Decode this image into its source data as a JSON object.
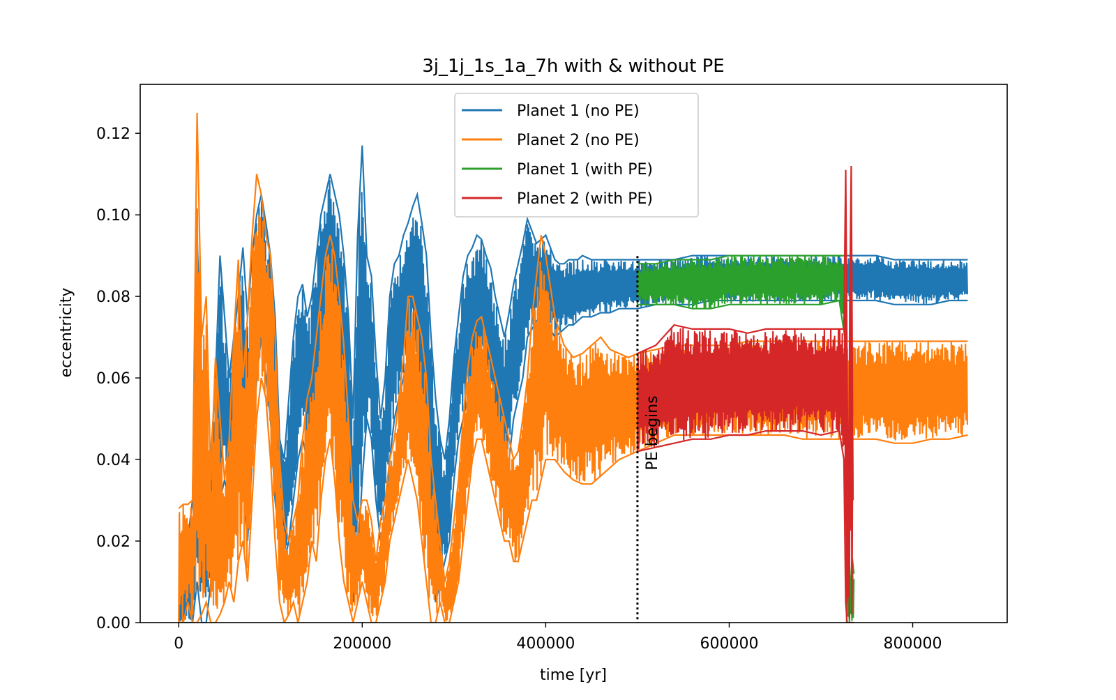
{
  "chart_data": {
    "type": "line",
    "title": "3j_1j_1s_1a_7h with & without PE",
    "xlabel": "time [yr]",
    "ylabel": "eccentricity",
    "xlim": [
      -42000,
      903000
    ],
    "ylim": [
      0.0,
      0.132
    ],
    "xticks": [
      0,
      200000,
      400000,
      600000,
      800000
    ],
    "xtick_labels": [
      "0",
      "200000",
      "400000",
      "600000",
      "800000"
    ],
    "yticks": [
      0.0,
      0.02,
      0.04,
      0.06,
      0.08,
      0.1,
      0.12
    ],
    "ytick_labels": [
      "0.00",
      "0.02",
      "0.04",
      "0.06",
      "0.08",
      "0.10",
      "0.12"
    ],
    "grid": false,
    "legend_position": "upper-center",
    "annotation": {
      "text": "PE begins",
      "x": 500000
    },
    "series": [
      {
        "name": "Planet 1 (no PE)",
        "color": "#1f77b4",
        "x": [
          0,
          15000,
          20000,
          25000,
          30000,
          35000,
          40000,
          45000,
          50000,
          55000,
          60000,
          65000,
          70000,
          75000,
          80000,
          85000,
          90000,
          95000,
          100000,
          105000,
          110000,
          115000,
          120000,
          125000,
          130000,
          135000,
          140000,
          145000,
          150000,
          155000,
          160000,
          165000,
          170000,
          175000,
          180000,
          185000,
          190000,
          195000,
          200000,
          205000,
          210000,
          215000,
          220000,
          225000,
          230000,
          235000,
          240000,
          245000,
          250000,
          255000,
          260000,
          265000,
          270000,
          275000,
          280000,
          285000,
          290000,
          295000,
          300000,
          305000,
          310000,
          315000,
          320000,
          325000,
          330000,
          335000,
          340000,
          345000,
          350000,
          355000,
          360000,
          365000,
          370000,
          375000,
          380000,
          385000,
          390000,
          395000,
          400000,
          405000,
          410000,
          415000,
          420000,
          425000,
          430000,
          435000,
          440000,
          450000,
          460000,
          470000,
          480000,
          490000,
          500000,
          520000,
          540000,
          560000,
          580000,
          600000,
          620000,
          640000,
          660000,
          680000,
          700000,
          720000,
          740000,
          760000,
          780000,
          800000,
          820000,
          840000,
          860000
        ],
        "lower": [
          0.0,
          0.0,
          0.01,
          0.0,
          0.0,
          0.01,
          0.02,
          0.03,
          0.035,
          0.03,
          0.04,
          0.045,
          0.035,
          0.02,
          0.04,
          0.06,
          0.07,
          0.06,
          0.05,
          0.03,
          0.02,
          0.015,
          0.02,
          0.03,
          0.04,
          0.045,
          0.04,
          0.035,
          0.05,
          0.06,
          0.07,
          0.075,
          0.07,
          0.06,
          0.045,
          0.02,
          0.005,
          0.015,
          0.035,
          0.05,
          0.045,
          0.03,
          0.02,
          0.025,
          0.04,
          0.05,
          0.055,
          0.06,
          0.065,
          0.07,
          0.06,
          0.045,
          0.03,
          0.015,
          0.005,
          0.01,
          0.015,
          0.02,
          0.035,
          0.045,
          0.05,
          0.055,
          0.055,
          0.06,
          0.065,
          0.06,
          0.055,
          0.045,
          0.04,
          0.035,
          0.04,
          0.05,
          0.055,
          0.06,
          0.07,
          0.072,
          0.074,
          0.075,
          0.074,
          0.072,
          0.07,
          0.071,
          0.072,
          0.073,
          0.073,
          0.074,
          0.075,
          0.075,
          0.076,
          0.076,
          0.077,
          0.077,
          0.077,
          0.078,
          0.078,
          0.078,
          0.079,
          0.079,
          0.079,
          0.079,
          0.079,
          0.079,
          0.079,
          0.079,
          0.079,
          0.079,
          0.078,
          0.078,
          0.078,
          0.079,
          0.079
        ],
        "upper": [
          0.002,
          0.03,
          0.095,
          0.06,
          0.03,
          0.04,
          0.06,
          0.09,
          0.075,
          0.06,
          0.07,
          0.08,
          0.092,
          0.075,
          0.09,
          0.1,
          0.105,
          0.098,
          0.09,
          0.075,
          0.045,
          0.04,
          0.055,
          0.07,
          0.08,
          0.083,
          0.075,
          0.08,
          0.09,
          0.1,
          0.105,
          0.11,
          0.105,
          0.1,
          0.09,
          0.075,
          0.05,
          0.095,
          0.117,
          0.09,
          0.085,
          0.065,
          0.05,
          0.06,
          0.08,
          0.088,
          0.09,
          0.095,
          0.098,
          0.102,
          0.105,
          0.098,
          0.09,
          0.07,
          0.055,
          0.045,
          0.04,
          0.05,
          0.065,
          0.075,
          0.085,
          0.09,
          0.092,
          0.095,
          0.094,
          0.09,
          0.087,
          0.08,
          0.075,
          0.07,
          0.076,
          0.083,
          0.088,
          0.093,
          0.099,
          0.096,
          0.093,
          0.094,
          0.095,
          0.092,
          0.089,
          0.088,
          0.088,
          0.089,
          0.089,
          0.089,
          0.09,
          0.089,
          0.089,
          0.089,
          0.089,
          0.089,
          0.089,
          0.089,
          0.089,
          0.09,
          0.09,
          0.09,
          0.09,
          0.09,
          0.09,
          0.09,
          0.09,
          0.09,
          0.09,
          0.09,
          0.089,
          0.089,
          0.089,
          0.089,
          0.089
        ]
      },
      {
        "name": "Planet 2 (no PE)",
        "color": "#ff7f0e",
        "x": [
          0,
          5000,
          10000,
          15000,
          20000,
          25000,
          30000,
          35000,
          40000,
          45000,
          50000,
          55000,
          60000,
          65000,
          70000,
          75000,
          80000,
          85000,
          90000,
          95000,
          100000,
          105000,
          110000,
          115000,
          120000,
          125000,
          130000,
          135000,
          140000,
          145000,
          150000,
          155000,
          160000,
          165000,
          170000,
          175000,
          180000,
          185000,
          190000,
          195000,
          200000,
          205000,
          210000,
          215000,
          220000,
          225000,
          230000,
          235000,
          240000,
          245000,
          250000,
          255000,
          260000,
          265000,
          270000,
          275000,
          280000,
          285000,
          290000,
          295000,
          300000,
          305000,
          310000,
          315000,
          320000,
          325000,
          330000,
          335000,
          340000,
          345000,
          350000,
          355000,
          360000,
          365000,
          370000,
          375000,
          380000,
          385000,
          390000,
          395000,
          400000,
          410000,
          420000,
          430000,
          440000,
          450000,
          460000,
          470000,
          480000,
          490000,
          500000,
          520000,
          540000,
          560000,
          580000,
          600000,
          620000,
          640000,
          660000,
          680000,
          700000,
          720000,
          740000,
          760000,
          780000,
          800000,
          820000,
          840000,
          860000
        ],
        "lower": [
          0.0,
          0.0,
          0.005,
          0.0,
          0.0,
          0.002,
          0.005,
          0.0,
          0.0,
          0.002,
          0.005,
          0.01,
          0.005,
          0.015,
          0.02,
          0.01,
          0.03,
          0.05,
          0.06,
          0.055,
          0.04,
          0.02,
          0.005,
          0.0,
          0.002,
          0.005,
          0.0,
          0.005,
          0.01,
          0.02,
          0.015,
          0.03,
          0.04,
          0.045,
          0.035,
          0.02,
          0.01,
          0.005,
          0.0,
          0.005,
          0.01,
          0.005,
          0.0,
          0.0,
          0.005,
          0.01,
          0.02,
          0.025,
          0.03,
          0.035,
          0.04,
          0.035,
          0.03,
          0.02,
          0.01,
          0.0,
          0.0,
          0.005,
          0.0,
          0.0,
          0.005,
          0.01,
          0.02,
          0.03,
          0.04,
          0.045,
          0.045,
          0.04,
          0.035,
          0.03,
          0.025,
          0.02,
          0.02,
          0.015,
          0.015,
          0.02,
          0.025,
          0.03,
          0.03,
          0.035,
          0.04,
          0.04,
          0.037,
          0.035,
          0.034,
          0.034,
          0.036,
          0.038,
          0.04,
          0.041,
          0.042,
          0.044,
          0.046,
          0.046,
          0.046,
          0.046,
          0.046,
          0.046,
          0.046,
          0.045,
          0.045,
          0.045,
          0.045,
          0.045,
          0.044,
          0.044,
          0.045,
          0.045,
          0.046
        ],
        "upper": [
          0.028,
          0.029,
          0.029,
          0.03,
          0.125,
          0.07,
          0.08,
          0.035,
          0.065,
          0.05,
          0.035,
          0.045,
          0.07,
          0.089,
          0.06,
          0.075,
          0.095,
          0.11,
          0.105,
          0.095,
          0.09,
          0.07,
          0.04,
          0.025,
          0.02,
          0.025,
          0.03,
          0.045,
          0.055,
          0.06,
          0.07,
          0.08,
          0.09,
          0.095,
          0.09,
          0.08,
          0.068,
          0.05,
          0.03,
          0.025,
          0.03,
          0.03,
          0.025,
          0.015,
          0.025,
          0.03,
          0.04,
          0.045,
          0.055,
          0.065,
          0.08,
          0.08,
          0.075,
          0.07,
          0.06,
          0.04,
          0.03,
          0.02,
          0.01,
          0.015,
          0.025,
          0.035,
          0.05,
          0.062,
          0.07,
          0.074,
          0.075,
          0.07,
          0.065,
          0.06,
          0.055,
          0.05,
          0.045,
          0.04,
          0.042,
          0.05,
          0.06,
          0.075,
          0.085,
          0.095,
          0.09,
          0.075,
          0.068,
          0.065,
          0.066,
          0.068,
          0.07,
          0.067,
          0.066,
          0.065,
          0.066,
          0.067,
          0.068,
          0.068,
          0.068,
          0.068,
          0.069,
          0.069,
          0.069,
          0.069,
          0.069,
          0.069,
          0.069,
          0.069,
          0.069,
          0.069,
          0.069,
          0.069,
          0.069
        ]
      },
      {
        "name": "Planet 1 (with PE)",
        "color": "#2ca02c",
        "x": [
          500000,
          520000,
          540000,
          560000,
          580000,
          600000,
          620000,
          640000,
          660000,
          680000,
          700000,
          720000,
          726000,
          728000,
          730000,
          732000,
          734000,
          736000
        ],
        "lower": [
          0.078,
          0.078,
          0.078,
          0.077,
          0.077,
          0.078,
          0.078,
          0.078,
          0.078,
          0.078,
          0.078,
          0.079,
          0.07,
          0.0,
          0.0,
          0.0,
          0.0,
          0.0
        ],
        "upper": [
          0.088,
          0.088,
          0.089,
          0.089,
          0.089,
          0.09,
          0.09,
          0.09,
          0.09,
          0.09,
          0.09,
          0.09,
          0.09,
          0.03,
          0.005,
          0.008,
          0.016,
          0.012
        ]
      },
      {
        "name": "Planet 2 (with PE)",
        "color": "#d62728",
        "x": [
          500000,
          520000,
          540000,
          560000,
          580000,
          600000,
          620000,
          640000,
          660000,
          680000,
          700000,
          720000,
          725000,
          727000,
          728500,
          730000,
          731500,
          733000,
          735000
        ],
        "lower": [
          0.042,
          0.043,
          0.044,
          0.045,
          0.045,
          0.046,
          0.046,
          0.047,
          0.047,
          0.047,
          0.046,
          0.047,
          0.04,
          0.005,
          0.0,
          0.0,
          0.0,
          0.0,
          0.0
        ],
        "upper": [
          0.066,
          0.068,
          0.073,
          0.072,
          0.072,
          0.072,
          0.071,
          0.072,
          0.072,
          0.072,
          0.072,
          0.072,
          0.072,
          0.111,
          0.06,
          0.02,
          0.08,
          0.112,
          0.03
        ]
      }
    ]
  }
}
